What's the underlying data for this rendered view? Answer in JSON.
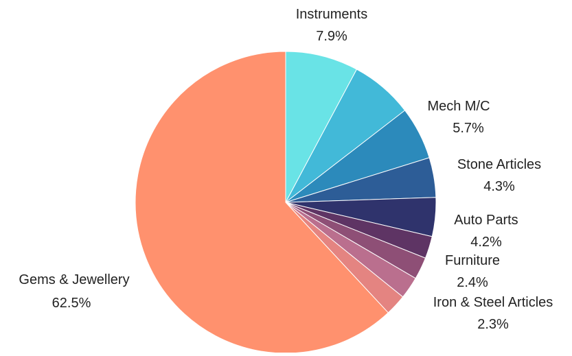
{
  "chart_data": {
    "type": "pie",
    "slices": [
      {
        "id": "instruments",
        "label": "Instruments",
        "pct_label": "7.9%",
        "value": 7.9,
        "color": "#69E3E6"
      },
      {
        "id": "unlabeled-1",
        "label": "",
        "pct_label": "",
        "value": 6.8,
        "color": "#42B9D8"
      },
      {
        "id": "mech-mc",
        "label": "Mech M/C",
        "pct_label": "5.7%",
        "value": 5.7,
        "color": "#2C8ABB"
      },
      {
        "id": "stone-articles",
        "label": "Stone Articles",
        "pct_label": "4.3%",
        "value": 4.3,
        "color": "#2D5D97"
      },
      {
        "id": "auto-parts",
        "label": "Auto Parts",
        "pct_label": "4.2%",
        "value": 4.2,
        "color": "#2F336C"
      },
      {
        "id": "unlabeled-2",
        "label": "",
        "pct_label": "",
        "value": 2.4,
        "color": "#5E3464"
      },
      {
        "id": "furniture",
        "label": "Furniture",
        "pct_label": "2.4%",
        "value": 2.4,
        "color": "#8E4F76"
      },
      {
        "id": "unlabeled-3",
        "label": "",
        "pct_label": "",
        "value": 2.4,
        "color": "#BA6F8E"
      },
      {
        "id": "iron-steel-articles",
        "label": "Iron & Steel Articles",
        "pct_label": "2.3%",
        "value": 2.3,
        "color": "#E48481"
      },
      {
        "id": "gems-jewellery",
        "label": "Gems & Jewellery",
        "pct_label": "62.5%",
        "value": 62.5,
        "color": "#FF916E"
      }
    ],
    "start_angle_deg": 0,
    "direction": "clockwise"
  }
}
